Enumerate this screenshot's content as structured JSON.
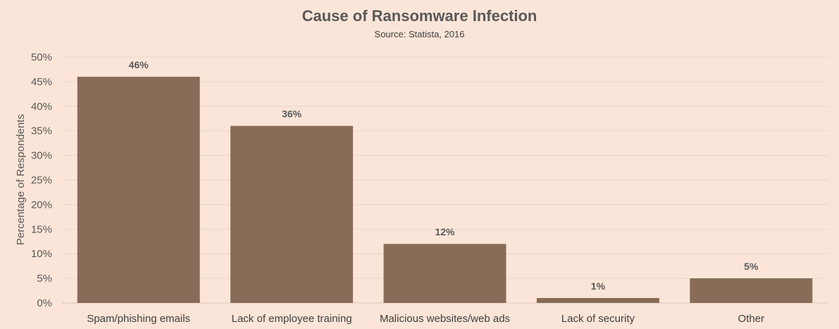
{
  "chart_data": {
    "type": "bar",
    "title": "Cause of Ransomware Infection",
    "subtitle": "Source: Statista, 2016",
    "xlabel": "",
    "ylabel": "Percentage of Respondents",
    "categories": [
      "Spam/phishing emails",
      "Lack of employee training",
      "Malicious websites/web ads",
      "Lack of security",
      "Other"
    ],
    "values": [
      46,
      36,
      12,
      1,
      5
    ],
    "data_labels": [
      "46%",
      "36%",
      "12%",
      "1%",
      "5%"
    ],
    "ylim": [
      0,
      50
    ],
    "yticks": [
      0,
      5,
      10,
      15,
      20,
      25,
      30,
      35,
      40,
      45,
      50
    ],
    "ytick_labels": [
      "0%",
      "5%",
      "10%",
      "15%",
      "20%",
      "25%",
      "30%",
      "35%",
      "40%",
      "45%",
      "50%"
    ],
    "grid": true,
    "legend": "none",
    "colors": {
      "bar": "#886c57",
      "background": "#fbe5d8",
      "grid": "#e8d6cb"
    }
  }
}
